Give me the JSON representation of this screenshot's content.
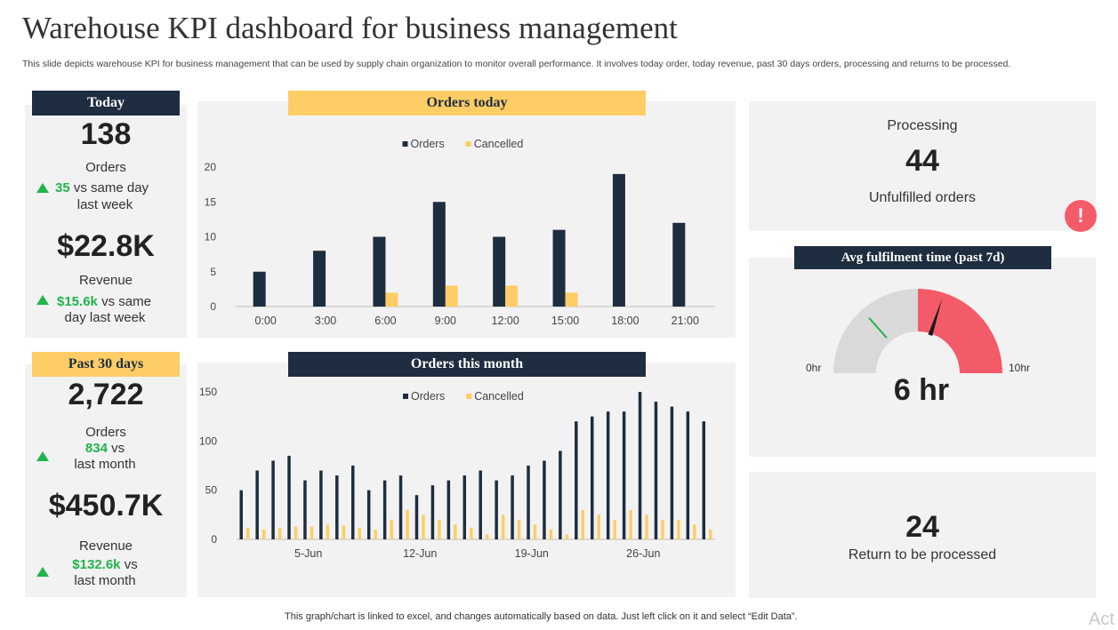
{
  "title": "Warehouse KPI dashboard for business management",
  "subtitle": "This slide depicts warehouse KPI for business management that can be used by supply chain organization to monitor overall performance. It involves today order, today revenue, past 30 days orders, processing and returns to be processed.",
  "footnote": "This graph/chart is linked to excel, and changes automatically based on data. Just left click on it and select “Edit Data”.",
  "watermark": "Act",
  "colors": {
    "navy": "#1e2d3f",
    "gold": "#ffcd66",
    "green": "#22b34c",
    "red": "#f45b69",
    "panel": "#f2f2f2"
  },
  "today": {
    "header": "Today",
    "orders_value": "138",
    "orders_label": "Orders",
    "orders_delta": "35",
    "orders_delta_text_1": "vs same day",
    "orders_delta_text_2": "last week",
    "revenue_value": "$22.8K",
    "revenue_label": "Revenue",
    "revenue_delta": "$15.6k",
    "revenue_delta_text_1": "vs same",
    "revenue_delta_text_2": "day last week"
  },
  "past30": {
    "header": "Past 30 days",
    "orders_value": "2,722",
    "orders_label": "Orders",
    "orders_delta": "834",
    "orders_delta_text_1": "vs",
    "orders_delta_text_2": "last month",
    "revenue_value": "$450.7K",
    "revenue_label": "Revenue",
    "revenue_delta": "$132.6k",
    "revenue_delta_text_1": "vs",
    "revenue_delta_text_2": "last month"
  },
  "processing": {
    "label": "Processing",
    "value": "44",
    "sublabel": "Unfulfilled orders",
    "alert_icon": "exclamation-icon",
    "alert_glyph": "!"
  },
  "fulfilment": {
    "header": "Avg fulfilment time (past 7d)",
    "value": "6 hr",
    "min_label": "0hr",
    "max_label": "10hr",
    "value_hours": 6,
    "max_hours": 10,
    "target_fraction": 0.27,
    "red_zone_start_fraction": 0.5
  },
  "returns": {
    "value": "24",
    "label": "Return to be processed"
  },
  "chart_data": [
    {
      "type": "bar",
      "title": "Orders today",
      "categories": [
        "0:00",
        "3:00",
        "6:00",
        "9:00",
        "12:00",
        "15:00",
        "18:00",
        "21:00"
      ],
      "series": [
        {
          "name": "Orders",
          "color": "#1e2d3f",
          "values": [
            5,
            8,
            10,
            15,
            10,
            11,
            19,
            12
          ]
        },
        {
          "name": "Cancelled",
          "color": "#ffcd66",
          "values": [
            0,
            0,
            2,
            3,
            3,
            2,
            0,
            0
          ]
        }
      ],
      "ylim": [
        0,
        20
      ],
      "yticks": [
        0,
        5,
        10,
        15,
        20
      ],
      "legend": "top-center"
    },
    {
      "type": "bar",
      "title": "Orders this month",
      "x": [
        "1-Jun",
        "2-Jun",
        "3-Jun",
        "4-Jun",
        "5-Jun",
        "6-Jun",
        "7-Jun",
        "8-Jun",
        "9-Jun",
        "10-Jun",
        "11-Jun",
        "12-Jun",
        "13-Jun",
        "14-Jun",
        "15-Jun",
        "16-Jun",
        "17-Jun",
        "18-Jun",
        "19-Jun",
        "20-Jun",
        "21-Jun",
        "22-Jun",
        "23-Jun",
        "24-Jun",
        "25-Jun",
        "26-Jun",
        "27-Jun",
        "28-Jun",
        "29-Jun",
        "30-Jun"
      ],
      "xtick_labels": [
        "5-Jun",
        "12-Jun",
        "19-Jun",
        "26-Jun"
      ],
      "series": [
        {
          "name": "Orders",
          "color": "#1e2d3f",
          "values": [
            50,
            70,
            80,
            85,
            60,
            70,
            65,
            75,
            50,
            60,
            65,
            45,
            55,
            60,
            65,
            70,
            60,
            65,
            75,
            80,
            90,
            120,
            125,
            130,
            130,
            150,
            140,
            135,
            130,
            120
          ]
        },
        {
          "name": "Cancelled",
          "color": "#ffcd66",
          "values": [
            12,
            10,
            12,
            13,
            13,
            15,
            14,
            12,
            10,
            20,
            30,
            25,
            20,
            15,
            12,
            5,
            25,
            20,
            15,
            10,
            5,
            30,
            25,
            20,
            30,
            25,
            20,
            20,
            15,
            10
          ]
        }
      ],
      "ylim": [
        0,
        150
      ],
      "yticks": [
        0,
        50,
        100,
        150
      ],
      "legend": "top-center"
    }
  ]
}
